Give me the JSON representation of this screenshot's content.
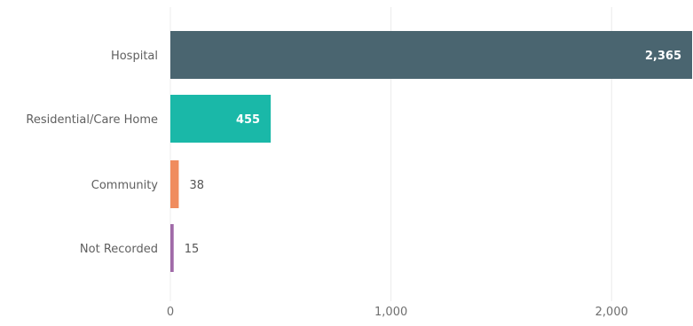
{
  "chart_data": {
    "type": "bar",
    "orientation": "horizontal",
    "title": "",
    "xlabel": "",
    "ylabel": "",
    "categories": [
      "Hospital",
      "Residential/Care Home",
      "Community",
      "Not Recorded"
    ],
    "values": [
      2365,
      455,
      38,
      15
    ],
    "value_labels": [
      "2,365",
      "455",
      "38",
      "15"
    ],
    "bar_colors": [
      "#4a6570",
      "#1ab8a8",
      "#f08c5e",
      "#a06aa8"
    ],
    "xlim": [
      0,
      2365
    ],
    "xticks": [
      0,
      1000,
      2000
    ],
    "xtick_labels": [
      "0",
      "1,000",
      "2,000"
    ],
    "grid": true,
    "legend": "none"
  }
}
